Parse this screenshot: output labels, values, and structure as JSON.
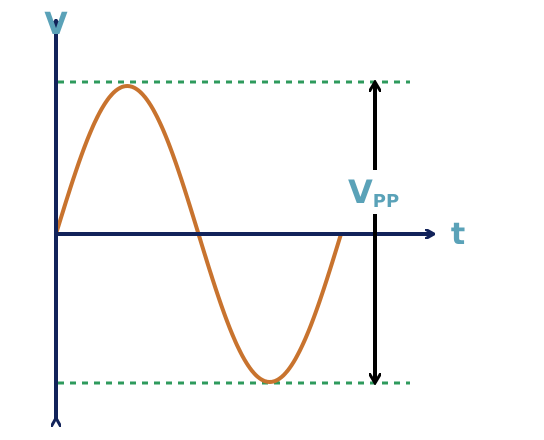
{
  "labels": {
    "y_axis": "V",
    "x_axis": "t",
    "vpp_main": "V",
    "vpp_sub": "PP"
  },
  "colors": {
    "axis": "#12235a",
    "guide": "#2e9a5c",
    "wave": "#c8732e",
    "vpp_arrow": "#000000",
    "label": "#5aa2b8"
  }
}
